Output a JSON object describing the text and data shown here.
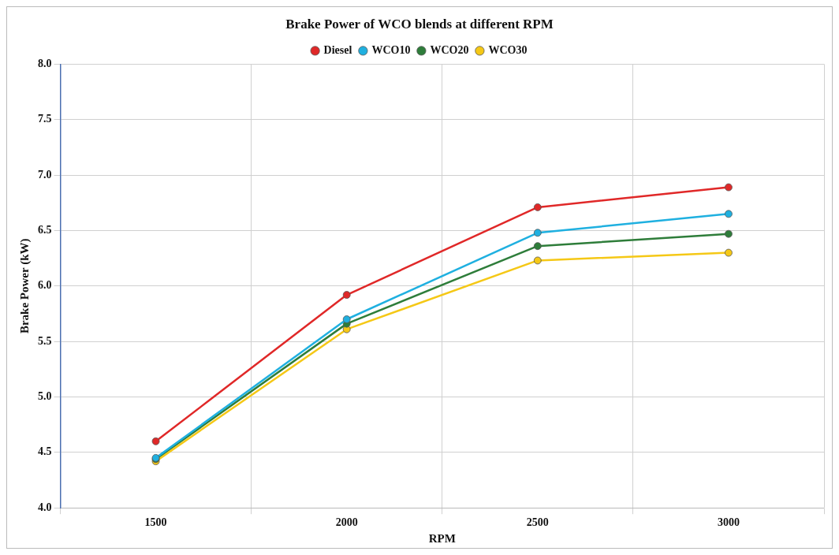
{
  "chart_data": {
    "type": "line",
    "title": "Brake Power of WCO blends at different RPM",
    "xlabel": "RPM",
    "ylabel": "Brake Power (kW)",
    "categories": [
      "1500",
      "2000",
      "2500",
      "3000"
    ],
    "series": [
      {
        "name": "Diesel",
        "color": "#e02828",
        "values": [
          4.6,
          5.92,
          6.71,
          6.89
        ]
      },
      {
        "name": "WCO10",
        "color": "#1fb0e0",
        "values": [
          4.45,
          5.7,
          6.48,
          6.65
        ]
      },
      {
        "name": "WCO20",
        "color": "#2e7d3a",
        "values": [
          4.44,
          5.66,
          6.36,
          6.47
        ]
      },
      {
        "name": "WCO30",
        "color": "#f5c816",
        "values": [
          4.42,
          5.61,
          6.23,
          6.3
        ]
      }
    ],
    "ylim": [
      4,
      8
    ],
    "yticks": [
      {
        "value": 4,
        "label": "4.0"
      },
      {
        "value": 4.5,
        "label": "4.5"
      },
      {
        "value": 5,
        "label": "5.0"
      },
      {
        "value": 5.5,
        "label": "5.5"
      },
      {
        "value": 6,
        "label": "6.0"
      },
      {
        "value": 6.5,
        "label": "6.5"
      },
      {
        "value": 7,
        "label": "7.0"
      },
      {
        "value": 7.5,
        "label": "7.5"
      },
      {
        "value": 8,
        "label": "8.0"
      }
    ],
    "grid": true,
    "legend": "top",
    "marker": "circle",
    "line_style": "solid"
  }
}
